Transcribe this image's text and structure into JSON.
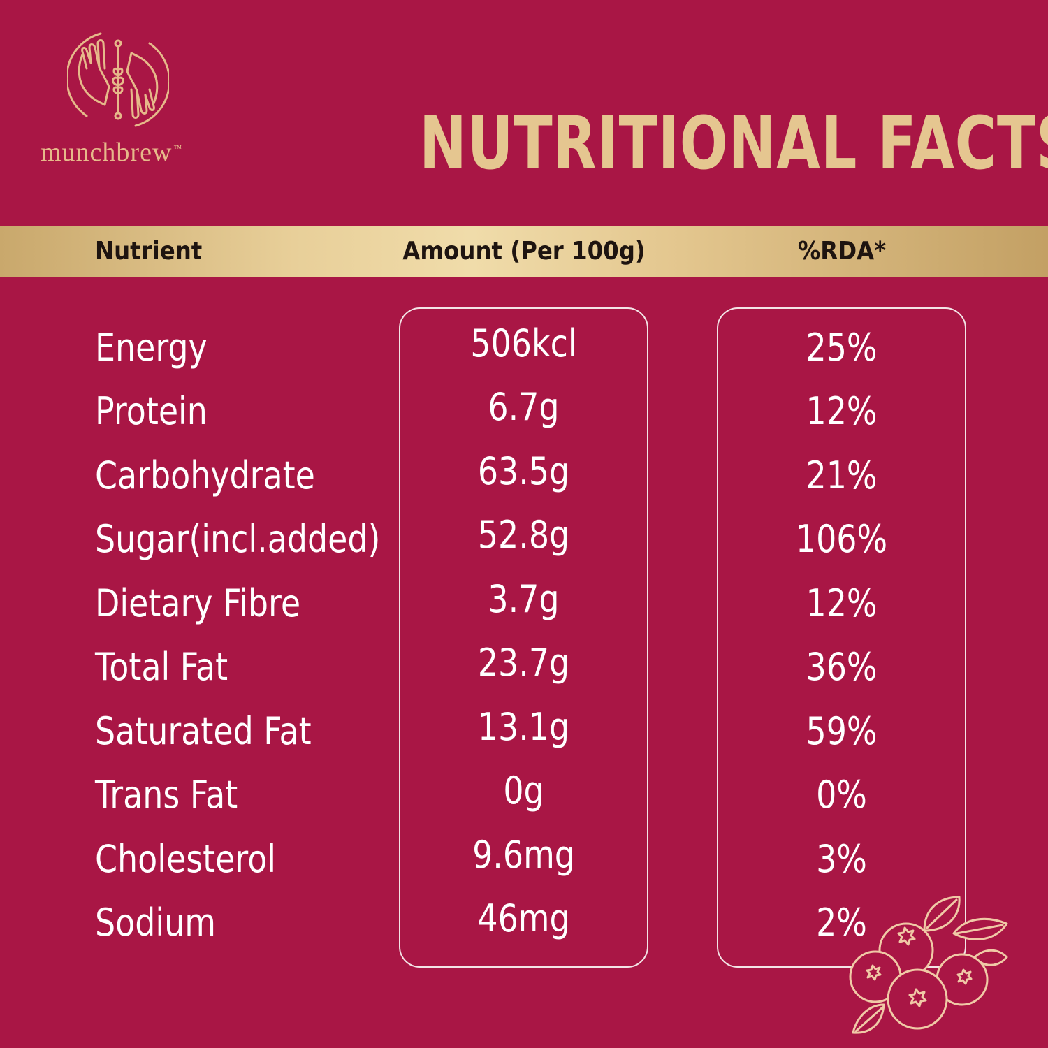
{
  "brand": {
    "name": "munchbrew",
    "trademark": "™"
  },
  "title": "NUTRITIONAL FACTS",
  "table": {
    "headers": {
      "nutrient": "Nutrient",
      "amount": "Amount (Per 100g)",
      "rda": "%RDA*"
    },
    "rows": [
      {
        "nutrient": "Energy",
        "amount": "506kcl",
        "rda": "25%"
      },
      {
        "nutrient": "Protein",
        "amount": "6.7g",
        "rda": "12%"
      },
      {
        "nutrient": "Carbohydrate",
        "amount": "63.5g",
        "rda": "21%"
      },
      {
        "nutrient": "Sugar(incl.added)",
        "amount": "52.8g",
        "rda": "106%"
      },
      {
        "nutrient": "Dietary Fibre",
        "amount": "3.7g",
        "rda": "12%"
      },
      {
        "nutrient": "Total Fat",
        "amount": "23.7g",
        "rda": "36%"
      },
      {
        "nutrient": "Saturated Fat",
        "amount": "13.1g",
        "rda": "59%"
      },
      {
        "nutrient": "Trans Fat",
        "amount": "0g",
        "rda": "0%"
      },
      {
        "nutrient": "Cholesterol",
        "amount": "9.6mg",
        "rda": "3%"
      },
      {
        "nutrient": "Sodium",
        "amount": "46mg",
        "rda": "2%"
      }
    ]
  },
  "colors": {
    "background": "#a91645",
    "gold": "#e5c690",
    "header_band": "#e8cf99",
    "text": "#ffffff",
    "header_text": "#1e1410"
  },
  "icons": [
    "munchbrew-logo-icon",
    "cranberry-illustration-icon"
  ]
}
